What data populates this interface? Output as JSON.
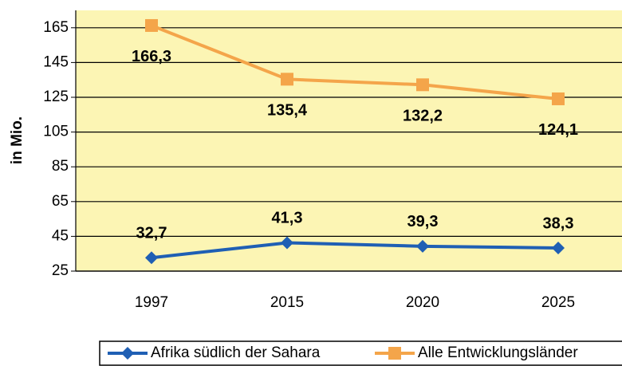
{
  "chart_data": {
    "type": "line",
    "y_label": "in Mio.",
    "categories": [
      "1997",
      "2015",
      "2020",
      "2025"
    ],
    "series": [
      {
        "name": "Afrika südlich der Sahara",
        "color": "#1f5fb4",
        "marker": "diamond",
        "values": [
          32.7,
          41.3,
          39.3,
          38.3
        ],
        "value_labels": [
          "32,7",
          "41,3",
          "39,3",
          "38,3"
        ],
        "label_position": "above"
      },
      {
        "name": "Alle Entwicklungsländer",
        "color": "#f4a54a",
        "marker": "square",
        "values": [
          166.3,
          135.4,
          132.2,
          124.1
        ],
        "value_labels": [
          "166,3",
          "135,4",
          "132,2",
          "124,1"
        ],
        "label_position": "below"
      }
    ],
    "ylim": [
      25,
      175
    ],
    "yticks": [
      25,
      45,
      65,
      85,
      105,
      125,
      145,
      165
    ],
    "grid": true,
    "legend": "bottom"
  }
}
